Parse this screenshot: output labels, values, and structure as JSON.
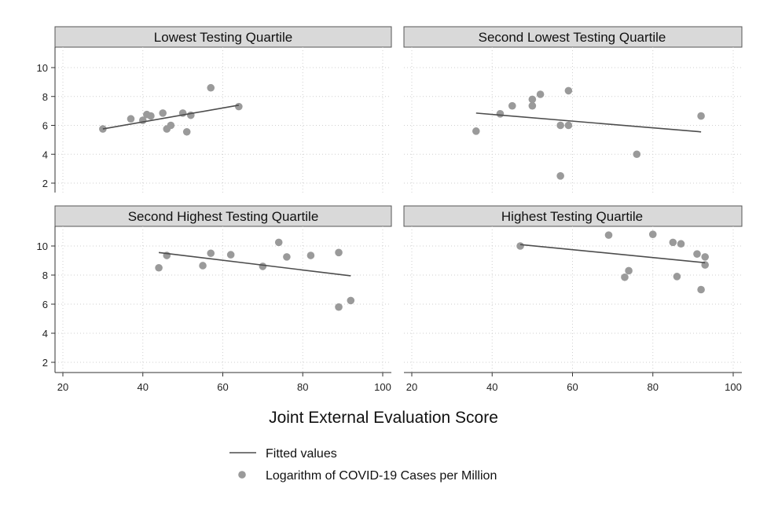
{
  "chart_data": {
    "type": "scatter",
    "xlabel": "Joint External Evaluation Score",
    "xlim": [
      20,
      100
    ],
    "xticks": [
      "20",
      "40",
      "60",
      "80",
      "100"
    ],
    "ylim": [
      1.5,
      11
    ],
    "yticks": [
      "2",
      "4",
      "6",
      "8",
      "10"
    ],
    "grid": true,
    "legend": {
      "position": "bottom",
      "fitted_label": "Fitted values",
      "points_label": "Logarithm of COVID-19 Cases per Million"
    },
    "panels": [
      {
        "title": "Lowest Testing Quartile",
        "points": [
          [
            30,
            5.75
          ],
          [
            37,
            6.45
          ],
          [
            40,
            6.35
          ],
          [
            41,
            6.75
          ],
          [
            42,
            6.65
          ],
          [
            45,
            6.85
          ],
          [
            46,
            5.75
          ],
          [
            47,
            6.0
          ],
          [
            50,
            6.85
          ],
          [
            51,
            5.55
          ],
          [
            52,
            6.7
          ],
          [
            57,
            8.6
          ],
          [
            64,
            7.3
          ]
        ],
        "fit": [
          [
            30,
            5.75
          ],
          [
            64,
            7.4
          ]
        ]
      },
      {
        "title": "Second Lowest Testing Quartile",
        "points": [
          [
            36,
            5.6
          ],
          [
            42,
            6.8
          ],
          [
            45,
            7.35
          ],
          [
            50,
            7.8
          ],
          [
            50,
            7.35
          ],
          [
            52,
            8.15
          ],
          [
            57,
            6.0
          ],
          [
            57,
            2.5
          ],
          [
            59,
            8.4
          ],
          [
            59,
            6.0
          ],
          [
            76,
            4.0
          ],
          [
            92,
            6.65
          ]
        ],
        "fit": [
          [
            36,
            6.85
          ],
          [
            92,
            5.55
          ]
        ]
      },
      {
        "title": "Second Highest Testing Quartile",
        "points": [
          [
            44,
            8.5
          ],
          [
            46,
            9.35
          ],
          [
            55,
            8.65
          ],
          [
            57,
            9.5
          ],
          [
            62,
            9.4
          ],
          [
            70,
            8.6
          ],
          [
            74,
            10.25
          ],
          [
            76,
            9.25
          ],
          [
            82,
            9.35
          ],
          [
            89,
            9.55
          ],
          [
            89,
            5.8
          ],
          [
            92,
            6.25
          ]
        ],
        "fit": [
          [
            44,
            9.55
          ],
          [
            92,
            7.95
          ]
        ]
      },
      {
        "title": "Highest Testing Quartile",
        "points": [
          [
            47,
            10.0
          ],
          [
            69,
            10.75
          ],
          [
            73,
            7.85
          ],
          [
            74,
            8.3
          ],
          [
            80,
            10.8
          ],
          [
            85,
            10.25
          ],
          [
            86,
            7.9
          ],
          [
            87,
            10.15
          ],
          [
            91,
            9.45
          ],
          [
            92,
            7.0
          ],
          [
            93,
            9.25
          ],
          [
            93,
            8.7
          ]
        ],
        "fit": [
          [
            47,
            10.1
          ],
          [
            93,
            8.85
          ]
        ]
      }
    ]
  },
  "colors": {
    "point": "#9a9a9a",
    "fit_line": "#4d4d4d",
    "title_box": "#d9d9d9",
    "grid": "#cfcfcf"
  }
}
